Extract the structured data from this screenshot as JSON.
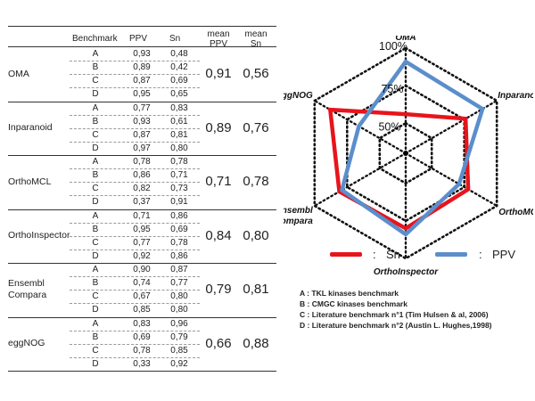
{
  "table": {
    "headers": {
      "benchmark": "Benchmark",
      "ppv": "PPV",
      "sn": "Sn",
      "mean_ppv": [
        "mean",
        "PPV"
      ],
      "mean_sn": [
        "mean",
        "Sn"
      ]
    },
    "rows": [
      {
        "tool": [
          "OMA"
        ],
        "mean_ppv": "0,91",
        "mean_sn": "0,56",
        "benchmarks": [
          {
            "b": "A",
            "ppv": "0,93",
            "sn": "0,48"
          },
          {
            "b": "B",
            "ppv": "0,89",
            "sn": "0,42"
          },
          {
            "b": "C",
            "ppv": "0,87",
            "sn": "0,69"
          },
          {
            "b": "D",
            "ppv": "0,95",
            "sn": "0,65"
          }
        ]
      },
      {
        "tool": [
          "Inparanoid"
        ],
        "mean_ppv": "0,89",
        "mean_sn": "0,76",
        "benchmarks": [
          {
            "b": "A",
            "ppv": "0,77",
            "sn": "0,83"
          },
          {
            "b": "B",
            "ppv": "0,93",
            "sn": "0,61"
          },
          {
            "b": "C",
            "ppv": "0,87",
            "sn": "0,81"
          },
          {
            "b": "D",
            "ppv": "0,97",
            "sn": "0,80"
          }
        ]
      },
      {
        "tool": [
          "OrthoMCL"
        ],
        "mean_ppv": "0,71",
        "mean_sn": "0,78",
        "benchmarks": [
          {
            "b": "A",
            "ppv": "0,78",
            "sn": "0,78"
          },
          {
            "b": "B",
            "ppv": "0,86",
            "sn": "0,71"
          },
          {
            "b": "C",
            "ppv": "0,82",
            "sn": "0,73"
          },
          {
            "b": "D",
            "ppv": "0,37",
            "sn": "0,91"
          }
        ]
      },
      {
        "tool": [
          "OrthoInspector"
        ],
        "mean_ppv": "0,84",
        "mean_sn": "0,80",
        "benchmarks": [
          {
            "b": "A",
            "ppv": "0,71",
            "sn": "0,86"
          },
          {
            "b": "B",
            "ppv": "0,95",
            "sn": "0,69"
          },
          {
            "b": "C",
            "ppv": "0,77",
            "sn": "0,78"
          },
          {
            "b": "D",
            "ppv": "0,92",
            "sn": "0,86"
          }
        ]
      },
      {
        "tool": [
          "Ensembl",
          "Compara"
        ],
        "mean_ppv": "0,79",
        "mean_sn": "0,81",
        "benchmarks": [
          {
            "b": "A",
            "ppv": "0,90",
            "sn": "0,87"
          },
          {
            "b": "B",
            "ppv": "0,74",
            "sn": "0,77"
          },
          {
            "b": "C",
            "ppv": "0,67",
            "sn": "0,80"
          },
          {
            "b": "D",
            "ppv": "0,85",
            "sn": "0,80"
          }
        ]
      },
      {
        "tool": [
          "eggNOG"
        ],
        "mean_ppv": "0,66",
        "mean_sn": "0,88",
        "benchmarks": [
          {
            "b": "A",
            "ppv": "0,83",
            "sn": "0,96"
          },
          {
            "b": "B",
            "ppv": "0,69",
            "sn": "0,79"
          },
          {
            "b": "C",
            "ppv": "0,78",
            "sn": "0,85"
          },
          {
            "b": "D",
            "ppv": "0,33",
            "sn": "0,92"
          }
        ]
      }
    ]
  },
  "chart_data": {
    "type": "radar",
    "axes": [
      {
        "label": [
          "OMA"
        ]
      },
      {
        "label": [
          "Inparanoid"
        ]
      },
      {
        "label": [
          "OrthoMCL"
        ]
      },
      {
        "label": [
          "OrthoInspector"
        ]
      },
      {
        "label": [
          "Ensembl",
          "compara"
        ]
      },
      {
        "label": [
          "eggNOG"
        ]
      }
    ],
    "rings": [
      {
        "value": 0.5,
        "label": "50%"
      },
      {
        "value": 0.75,
        "label": "75%"
      },
      {
        "value": 1.0,
        "label": "100%"
      }
    ],
    "range": [
      0.3,
      1.0
    ],
    "series": [
      {
        "name": "Sn",
        "color": "#e8141c",
        "values": [
          0.56,
          0.76,
          0.78,
          0.8,
          0.81,
          0.88
        ]
      },
      {
        "name": "PPV",
        "color": "#5b8ecb",
        "values": [
          0.91,
          0.89,
          0.71,
          0.84,
          0.79,
          0.66
        ]
      }
    ],
    "legend": {
      "position": "bottom",
      "separator": ":"
    }
  },
  "notes": [
    {
      "key": "A :",
      "text": "TKL kinases benchmark"
    },
    {
      "key": "B :",
      "text": "CMGC kinases benchmark"
    },
    {
      "key": "C :",
      "text": "Literature benchmark n°1 (Tim Hulsen & al, 2006)"
    },
    {
      "key": "D :",
      "text": "Literature benchmark n°2 (Austin L. Hughes,1998)"
    }
  ]
}
